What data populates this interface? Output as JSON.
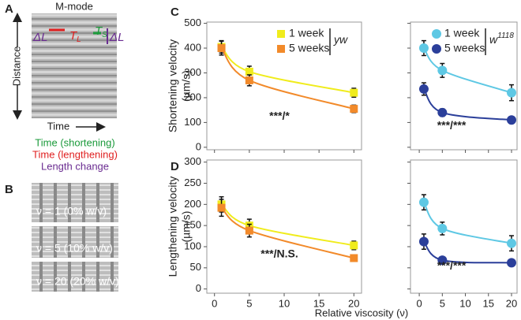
{
  "panel_a": {
    "letter": "A",
    "title": "M-mode",
    "y_label": "Distance",
    "x_label": "Time",
    "image_labels": {
      "delta_l_left": "ΔL",
      "t_l": "T",
      "t_l_sub": "L",
      "t_s": "T",
      "t_s_sub": "S",
      "delta_l_right": "ΔL"
    },
    "legend": [
      {
        "text": "Time (shortening)",
        "color": "#1a9a3a"
      },
      {
        "text": "Time (lengthening)",
        "color": "#e02020"
      },
      {
        "text": "Length change",
        "color": "#6a2c91"
      }
    ]
  },
  "panel_b": {
    "letter": "B",
    "images": [
      "ν = 1 (0% w/v)",
      "ν = 5 (10% w/v)",
      "ν = 20 (20% w/v)"
    ]
  },
  "panel_c_letter": "C",
  "panel_d_letter": "D",
  "x_label": "Relative viscosity (ν)",
  "chart_data": [
    {
      "type": "scatter",
      "x": [
        1,
        5,
        20
      ],
      "marker": "square",
      "series": [
        {
          "name": "1 week",
          "color": "#f0ec1c",
          "values": [
            405,
            305,
            220
          ],
          "errors": [
            25,
            22,
            18
          ]
        },
        {
          "name": "5 weeks",
          "color": "#f28a2a",
          "values": [
            400,
            270,
            155
          ],
          "errors": [
            28,
            22,
            15
          ]
        }
      ],
      "xlim": [
        -1.1,
        21.1
      ],
      "xticks": [
        0,
        5,
        10,
        15,
        20
      ],
      "xtick_labels": false,
      "ylim": [
        -10,
        505
      ],
      "yticks": [
        0,
        100,
        200,
        300,
        400,
        500
      ],
      "ytick_labels": true,
      "y_label": [
        "Shortening velocity",
        "(µm/s)"
      ],
      "legend": "upper right",
      "legend_title": "yw",
      "annotation": "***/*"
    },
    {
      "type": "scatter",
      "x": [
        1,
        5,
        20
      ],
      "marker": "circle",
      "series": [
        {
          "name": "1 week",
          "color": "#5ec8e4",
          "values": [
            400,
            310,
            220
          ],
          "errors": [
            30,
            28,
            32
          ]
        },
        {
          "name": "5 weeks",
          "color": "#2b3f9a",
          "values": [
            235,
            140,
            110
          ],
          "errors": [
            25,
            15,
            12
          ]
        }
      ],
      "xlim": [
        -1.9,
        21.2
      ],
      "xticks": [
        0,
        5,
        10,
        15,
        20
      ],
      "xtick_labels": false,
      "ylim": [
        -10,
        505
      ],
      "yticks": [
        0,
        100,
        200,
        300,
        400,
        500
      ],
      "ytick_labels": false,
      "legend": "upper right",
      "legend_title": "w",
      "legend_title_sup": "1118",
      "annotation": "***/***"
    },
    {
      "type": "scatter",
      "x": [
        1,
        5,
        20
      ],
      "marker": "square",
      "series": [
        {
          "color": "#f0ec1c",
          "values": [
            200,
            150,
            103
          ],
          "errors": [
            18,
            15,
            10
          ]
        },
        {
          "color": "#f28a2a",
          "values": [
            192,
            138,
            73
          ],
          "errors": [
            20,
            15,
            6
          ]
        }
      ],
      "xlim": [
        -1.1,
        21.1
      ],
      "xticks": [
        0,
        5,
        10,
        15,
        20
      ],
      "xtick_labels": true,
      "ylim": [
        -10,
        305
      ],
      "yticks": [
        0,
        50,
        100,
        150,
        200,
        250,
        300
      ],
      "ytick_labels": true,
      "y_label": [
        "Lengthening velocity",
        "(µm/s)"
      ],
      "annotation": "***/N.S."
    },
    {
      "type": "scatter",
      "x": [
        1,
        5,
        20
      ],
      "marker": "circle",
      "series": [
        {
          "color": "#5ec8e4",
          "values": [
            205,
            143,
            108
          ],
          "errors": [
            18,
            15,
            18
          ]
        },
        {
          "color": "#2b3f9a",
          "values": [
            112,
            68,
            62
          ],
          "errors": [
            18,
            8,
            8
          ]
        }
      ],
      "xlim": [
        -1.9,
        21.2
      ],
      "xticks": [
        0,
        5,
        10,
        15,
        20
      ],
      "xtick_labels": true,
      "ylim": [
        -10,
        305
      ],
      "yticks": [
        0,
        50,
        100,
        150,
        200,
        250,
        300
      ],
      "ytick_labels": false,
      "annotation": "***/***"
    }
  ]
}
